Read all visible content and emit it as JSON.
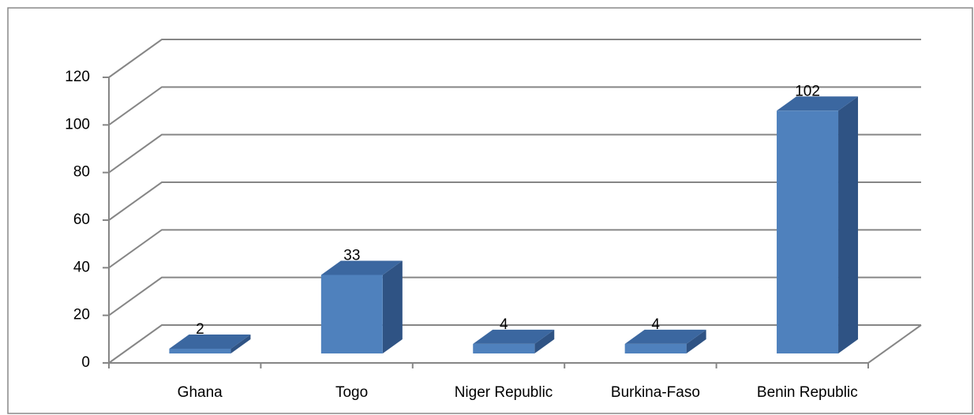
{
  "chart_data": {
    "type": "bar",
    "categories": [
      "Ghana",
      "Togo",
      "Niger Republic",
      "Burkina-Faso",
      "Benin Republic"
    ],
    "values": [
      2,
      33,
      4,
      4,
      102
    ],
    "color": "#4f81bd",
    "ylim": [
      0,
      120
    ],
    "yticks": [
      0,
      20,
      40,
      60,
      80,
      100,
      120
    ],
    "grid": true
  }
}
